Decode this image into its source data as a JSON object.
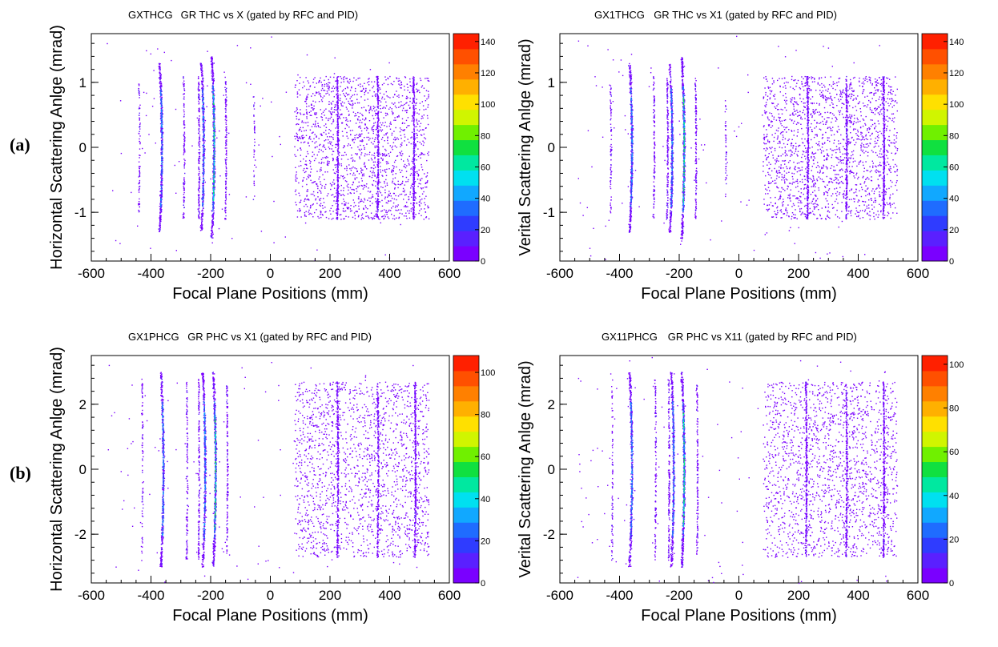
{
  "row_labels": [
    "(a)",
    "(b)"
  ],
  "colorscale": [
    "#7a00ff",
    "#5a20ff",
    "#2f3cff",
    "#1f6cff",
    "#11a8ff",
    "#00e0f0",
    "#00e8a0",
    "#10e040",
    "#70f000",
    "#d0f500",
    "#ffe000",
    "#ffb000",
    "#ff8000",
    "#ff5000",
    "#ff2000"
  ],
  "chart_data": [
    {
      "type": "heatmap",
      "name": "GXTHCG",
      "title": "GR THC vs X (gated by RFC and PID)",
      "xlabel": "Focal Plane Positions (mm)",
      "ylabel": "Horizontal Scattering Anlge (mrad)",
      "xlim": [
        -600,
        600
      ],
      "ylim": [
        -1.75,
        1.75
      ],
      "x_ticks": [
        -600,
        -400,
        -200,
        0,
        200,
        400,
        600
      ],
      "y_ticks": [
        -1,
        0,
        1
      ],
      "z_range": [
        0,
        145
      ],
      "z_ticks": [
        0,
        20,
        40,
        60,
        80,
        100,
        120,
        140
      ],
      "scatter_region": {
        "x": [
          80,
          530
        ],
        "y": [
          -1.1,
          1.1
        ]
      },
      "lines": [
        {
          "x": -440,
          "y": [
            -1.0,
            1.0
          ],
          "density": 0.2
        },
        {
          "x": -365,
          "y": [
            -1.3,
            1.3
          ],
          "density": 1.0
        },
        {
          "x": -290,
          "y": [
            -1.1,
            1.1
          ],
          "density": 0.3
        },
        {
          "x": -240,
          "y": [
            -1.1,
            1.1
          ],
          "density": 0.4
        },
        {
          "x": -225,
          "y": [
            -1.3,
            1.3
          ],
          "density": 0.9
        },
        {
          "x": -190,
          "y": [
            -1.4,
            1.4
          ],
          "density": 1.2
        },
        {
          "x": -150,
          "y": [
            -1.1,
            1.1
          ],
          "density": 0.35
        },
        {
          "x": -55,
          "y": [
            -0.8,
            0.8
          ],
          "density": 0.1
        },
        {
          "x": 225,
          "y": [
            -1.1,
            1.1
          ],
          "density": 0.7
        },
        {
          "x": 360,
          "y": [
            -1.1,
            1.1
          ],
          "density": 0.6
        },
        {
          "x": 480,
          "y": [
            -1.1,
            1.1
          ],
          "density": 0.8
        }
      ]
    },
    {
      "type": "heatmap",
      "name": "GX1THCG",
      "title": "GR THC vs X1 (gated by RFC and PID)",
      "xlabel": "Focal Plane Positions (mm)",
      "ylabel": "Verital Scattering Anlge (mrad)",
      "xlim": [
        -600,
        600
      ],
      "ylim": [
        -1.75,
        1.75
      ],
      "x_ticks": [
        -600,
        -400,
        -200,
        0,
        200,
        400,
        600
      ],
      "y_ticks": [
        -1,
        0,
        1
      ],
      "z_range": [
        0,
        145
      ],
      "z_ticks": [
        0,
        20,
        40,
        60,
        80,
        100,
        120,
        140
      ],
      "scatter_region": {
        "x": [
          80,
          530
        ],
        "y": [
          -1.1,
          1.1
        ]
      },
      "lines": [
        {
          "x": -430,
          "y": [
            -1.0,
            1.0
          ],
          "density": 0.2
        },
        {
          "x": -360,
          "y": [
            -1.3,
            1.3
          ],
          "density": 1.0
        },
        {
          "x": -285,
          "y": [
            -1.1,
            1.1
          ],
          "density": 0.3
        },
        {
          "x": -240,
          "y": [
            -1.1,
            1.1
          ],
          "density": 0.4
        },
        {
          "x": -225,
          "y": [
            -1.3,
            1.3
          ],
          "density": 0.9
        },
        {
          "x": -185,
          "y": [
            -1.4,
            1.4
          ],
          "density": 1.2
        },
        {
          "x": -145,
          "y": [
            -1.1,
            1.1
          ],
          "density": 0.35
        },
        {
          "x": -45,
          "y": [
            -0.8,
            0.8
          ],
          "density": 0.1
        },
        {
          "x": 230,
          "y": [
            -1.1,
            1.1
          ],
          "density": 0.7
        },
        {
          "x": 360,
          "y": [
            -1.1,
            1.1
          ],
          "density": 0.6
        },
        {
          "x": 485,
          "y": [
            -1.1,
            1.1
          ],
          "density": 0.8
        }
      ]
    },
    {
      "type": "heatmap",
      "name": "GX1PHCG",
      "title": "GR PHC vs X1 (gated by RFC and PID)",
      "xlabel": "Focal Plane Positions (mm)",
      "ylabel": "Horizontal Scattering Anlge (mrad)",
      "xlim": [
        -600,
        600
      ],
      "ylim": [
        -3.5,
        3.5
      ],
      "x_ticks": [
        -600,
        -400,
        -200,
        0,
        200,
        400,
        600
      ],
      "y_ticks": [
        -2,
        0,
        2
      ],
      "z_range": [
        0,
        108
      ],
      "z_ticks": [
        0,
        20,
        40,
        60,
        80,
        100
      ],
      "scatter_region": {
        "x": [
          80,
          530
        ],
        "y": [
          -2.7,
          2.7
        ]
      },
      "lines": [
        {
          "x": -430,
          "y": [
            -2.8,
            2.8
          ],
          "density": 0.2
        },
        {
          "x": -360,
          "y": [
            -3.0,
            3.0
          ],
          "density": 1.0
        },
        {
          "x": -280,
          "y": [
            -2.8,
            2.8
          ],
          "density": 0.3
        },
        {
          "x": -240,
          "y": [
            -2.8,
            2.8
          ],
          "density": 0.4
        },
        {
          "x": -220,
          "y": [
            -3.0,
            3.0
          ],
          "density": 0.9
        },
        {
          "x": -185,
          "y": [
            -3.0,
            3.0
          ],
          "density": 1.2
        },
        {
          "x": -145,
          "y": [
            -2.6,
            2.6
          ],
          "density": 0.35
        },
        {
          "x": 225,
          "y": [
            -2.7,
            2.7
          ],
          "density": 0.7
        },
        {
          "x": 360,
          "y": [
            -2.7,
            2.7
          ],
          "density": 0.6
        },
        {
          "x": 485,
          "y": [
            -2.7,
            2.7
          ],
          "density": 0.8
        }
      ]
    },
    {
      "type": "heatmap",
      "name": "GX11PHCG",
      "title": "GR PHC vs X11 (gated by RFC and PID)",
      "xlabel": "Focal Plane Positions (mm)",
      "ylabel": "Verital Scattering Anlge (mrad)",
      "xlim": [
        -600,
        600
      ],
      "ylim": [
        -3.5,
        3.5
      ],
      "x_ticks": [
        -600,
        -400,
        -200,
        0,
        200,
        400,
        600
      ],
      "y_ticks": [
        -2,
        0,
        2
      ],
      "z_range": [
        0,
        104
      ],
      "z_ticks": [
        0,
        20,
        40,
        60,
        80,
        100
      ],
      "scatter_region": {
        "x": [
          80,
          530
        ],
        "y": [
          -2.7,
          2.7
        ]
      },
      "lines": [
        {
          "x": -425,
          "y": [
            -2.8,
            2.8
          ],
          "density": 0.2
        },
        {
          "x": -360,
          "y": [
            -3.0,
            3.0
          ],
          "density": 1.0
        },
        {
          "x": -280,
          "y": [
            -2.8,
            2.8
          ],
          "density": 0.3
        },
        {
          "x": -235,
          "y": [
            -2.8,
            2.8
          ],
          "density": 0.4
        },
        {
          "x": -220,
          "y": [
            -3.0,
            3.0
          ],
          "density": 0.9
        },
        {
          "x": -185,
          "y": [
            -3.0,
            3.0
          ],
          "density": 1.2
        },
        {
          "x": -140,
          "y": [
            -2.6,
            2.6
          ],
          "density": 0.35
        },
        {
          "x": 225,
          "y": [
            -2.7,
            2.7
          ],
          "density": 0.7
        },
        {
          "x": 360,
          "y": [
            -2.7,
            2.7
          ],
          "density": 0.6
        },
        {
          "x": 485,
          "y": [
            -2.7,
            2.7
          ],
          "density": 0.8
        }
      ]
    }
  ]
}
